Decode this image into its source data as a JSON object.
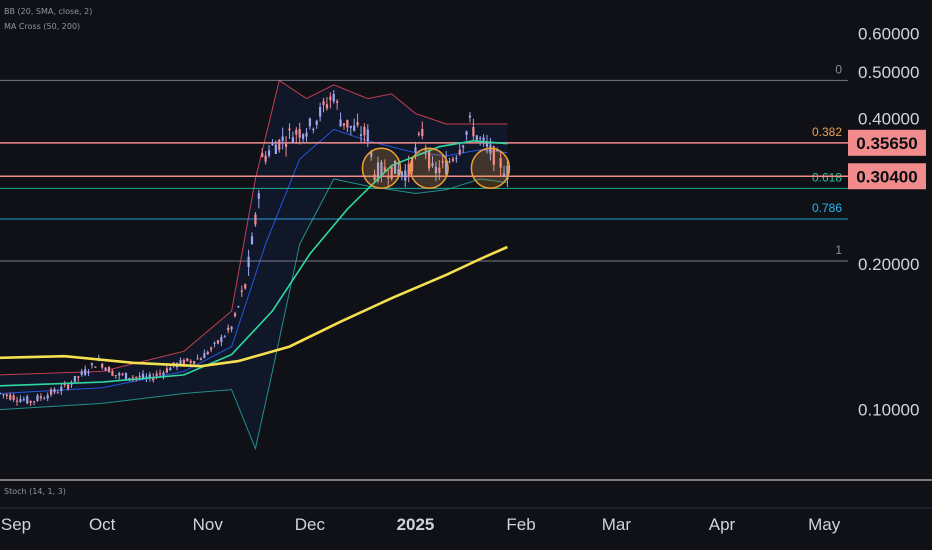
{
  "indicators": {
    "bb": "BB (20, SMA, close, 2)",
    "ma": "MA Cross (50, 200)",
    "stoch": "Stoch (14, 1, 3)"
  },
  "colors": {
    "background": "#0f1117",
    "up_candle": "#9aa6f0",
    "down_candle": "#f28b95",
    "bb_upper": "#e0455a",
    "bb_lower": "#26a69a",
    "bb_basis": "#2962ff",
    "ma50": "#2ed8a0",
    "ma200": "#f5e050",
    "fib_line": "#8a8f9c",
    "fib_0382": "#f0a050",
    "fib_0618": "#26c6a0",
    "fib_0786": "#29b6f6",
    "price_box": "#f28b8b",
    "highlight_circle": "#f0a030"
  },
  "chart_data": {
    "type": "candlestick",
    "title": "",
    "y_scale": "log",
    "ylim": [
      0.075,
      0.64
    ],
    "y_ticks": [
      "0.60000",
      "0.50000",
      "0.40000",
      "0.20000",
      "0.10000"
    ],
    "x_ticks": [
      "Sep",
      "Oct",
      "Nov",
      "Dec",
      "2025",
      "Feb",
      "Mar",
      "Apr",
      "May"
    ],
    "x_range": [
      "2024-09-01",
      "2025-05-08"
    ],
    "grid": false,
    "fib_levels": [
      {
        "level": "0",
        "price": 0.48
      },
      {
        "level": "0.382",
        "price": 0.3565
      },
      {
        "level": "0.618",
        "price": 0.287
      },
      {
        "level": "0.786",
        "price": 0.248
      },
      {
        "level": "1",
        "price": 0.203
      }
    ],
    "price_boxes": [
      {
        "label": "0.35650",
        "price": 0.3565
      },
      {
        "label": "0.30400",
        "price": 0.304
      }
    ],
    "highlight_circles": [
      {
        "date": "2024-12-22",
        "price": 0.304
      },
      {
        "date": "2025-01-05",
        "price": 0.304
      },
      {
        "date": "2025-01-23",
        "price": 0.304
      }
    ],
    "price_path": [
      [
        "2024-09-01",
        0.108
      ],
      [
        "2024-09-10",
        0.104
      ],
      [
        "2024-09-20",
        0.111
      ],
      [
        "2024-09-30",
        0.126
      ],
      [
        "2024-10-05",
        0.118
      ],
      [
        "2024-10-15",
        0.116
      ],
      [
        "2024-10-23",
        0.124
      ],
      [
        "2024-10-30",
        0.128
      ],
      [
        "2024-11-03",
        0.135
      ],
      [
        "2024-11-08",
        0.148
      ],
      [
        "2024-11-12",
        0.18
      ],
      [
        "2024-11-15",
        0.245
      ],
      [
        "2024-11-17",
        0.33
      ],
      [
        "2024-11-20",
        0.35
      ],
      [
        "2024-11-25",
        0.37
      ],
      [
        "2024-12-01",
        0.385
      ],
      [
        "2024-12-05",
        0.42
      ],
      [
        "2024-12-08",
        0.45
      ],
      [
        "2024-12-10",
        0.4
      ],
      [
        "2024-12-14",
        0.38
      ],
      [
        "2024-12-18",
        0.37
      ],
      [
        "2024-12-20",
        0.31
      ],
      [
        "2024-12-24",
        0.315
      ],
      [
        "2024-12-30",
        0.31
      ],
      [
        "2025-01-03",
        0.375
      ],
      [
        "2025-01-06",
        0.31
      ],
      [
        "2025-01-10",
        0.32
      ],
      [
        "2025-01-14",
        0.35
      ],
      [
        "2025-01-17",
        0.39
      ],
      [
        "2025-01-20",
        0.36
      ],
      [
        "2025-01-25",
        0.33
      ],
      [
        "2025-01-28",
        0.31
      ]
    ],
    "series": [
      {
        "name": "MA 50",
        "points": [
          [
            "2024-09-01",
            0.112
          ],
          [
            "2024-10-01",
            0.114
          ],
          [
            "2024-10-25",
            0.118
          ],
          [
            "2024-11-08",
            0.13
          ],
          [
            "2024-11-20",
            0.16
          ],
          [
            "2024-12-01",
            0.21
          ],
          [
            "2024-12-12",
            0.26
          ],
          [
            "2024-12-25",
            0.32
          ],
          [
            "2025-01-08",
            0.35
          ],
          [
            "2025-01-18",
            0.36
          ],
          [
            "2025-01-28",
            0.355
          ]
        ]
      },
      {
        "name": "MA 200",
        "points": [
          [
            "2024-09-01",
            0.128
          ],
          [
            "2024-09-20",
            0.129
          ],
          [
            "2024-10-10",
            0.125
          ],
          [
            "2024-10-30",
            0.123
          ],
          [
            "2024-11-10",
            0.126
          ],
          [
            "2024-11-25",
            0.135
          ],
          [
            "2024-12-10",
            0.152
          ],
          [
            "2024-12-25",
            0.17
          ],
          [
            "2025-01-10",
            0.19
          ],
          [
            "2025-01-20",
            0.205
          ],
          [
            "2025-01-28",
            0.217
          ]
        ]
      },
      {
        "name": "BB upper",
        "points": [
          [
            "2024-09-01",
            0.118
          ],
          [
            "2024-10-01",
            0.12
          ],
          [
            "2024-10-25",
            0.132
          ],
          [
            "2024-11-08",
            0.16
          ],
          [
            "2024-11-15",
            0.3
          ],
          [
            "2024-11-22",
            0.48
          ],
          [
            "2024-11-30",
            0.44
          ],
          [
            "2024-12-08",
            0.47
          ],
          [
            "2024-12-18",
            0.44
          ],
          [
            "2024-12-25",
            0.45
          ],
          [
            "2025-01-01",
            0.41
          ],
          [
            "2025-01-10",
            0.39
          ],
          [
            "2025-01-20",
            0.39
          ],
          [
            "2025-01-28",
            0.39
          ]
        ]
      },
      {
        "name": "BB lower",
        "points": [
          [
            "2024-09-01",
            0.1
          ],
          [
            "2024-10-01",
            0.103
          ],
          [
            "2024-10-25",
            0.108
          ],
          [
            "2024-11-08",
            0.11
          ],
          [
            "2024-11-15",
            0.083
          ],
          [
            "2024-11-20",
            0.12
          ],
          [
            "2024-11-28",
            0.22
          ],
          [
            "2024-12-08",
            0.3
          ],
          [
            "2024-12-18",
            0.29
          ],
          [
            "2025-01-01",
            0.28
          ],
          [
            "2025-01-10",
            0.285
          ],
          [
            "2025-01-20",
            0.3
          ],
          [
            "2025-01-28",
            0.295
          ]
        ]
      },
      {
        "name": "BB basis",
        "points": [
          [
            "2024-09-01",
            0.108
          ],
          [
            "2024-10-01",
            0.111
          ],
          [
            "2024-10-25",
            0.12
          ],
          [
            "2024-11-08",
            0.135
          ],
          [
            "2024-11-18",
            0.22
          ],
          [
            "2024-11-28",
            0.33
          ],
          [
            "2024-12-08",
            0.38
          ],
          [
            "2024-12-18",
            0.36
          ],
          [
            "2025-01-01",
            0.34
          ],
          [
            "2025-01-10",
            0.335
          ],
          [
            "2025-01-20",
            0.345
          ],
          [
            "2025-01-28",
            0.34
          ]
        ]
      }
    ]
  }
}
